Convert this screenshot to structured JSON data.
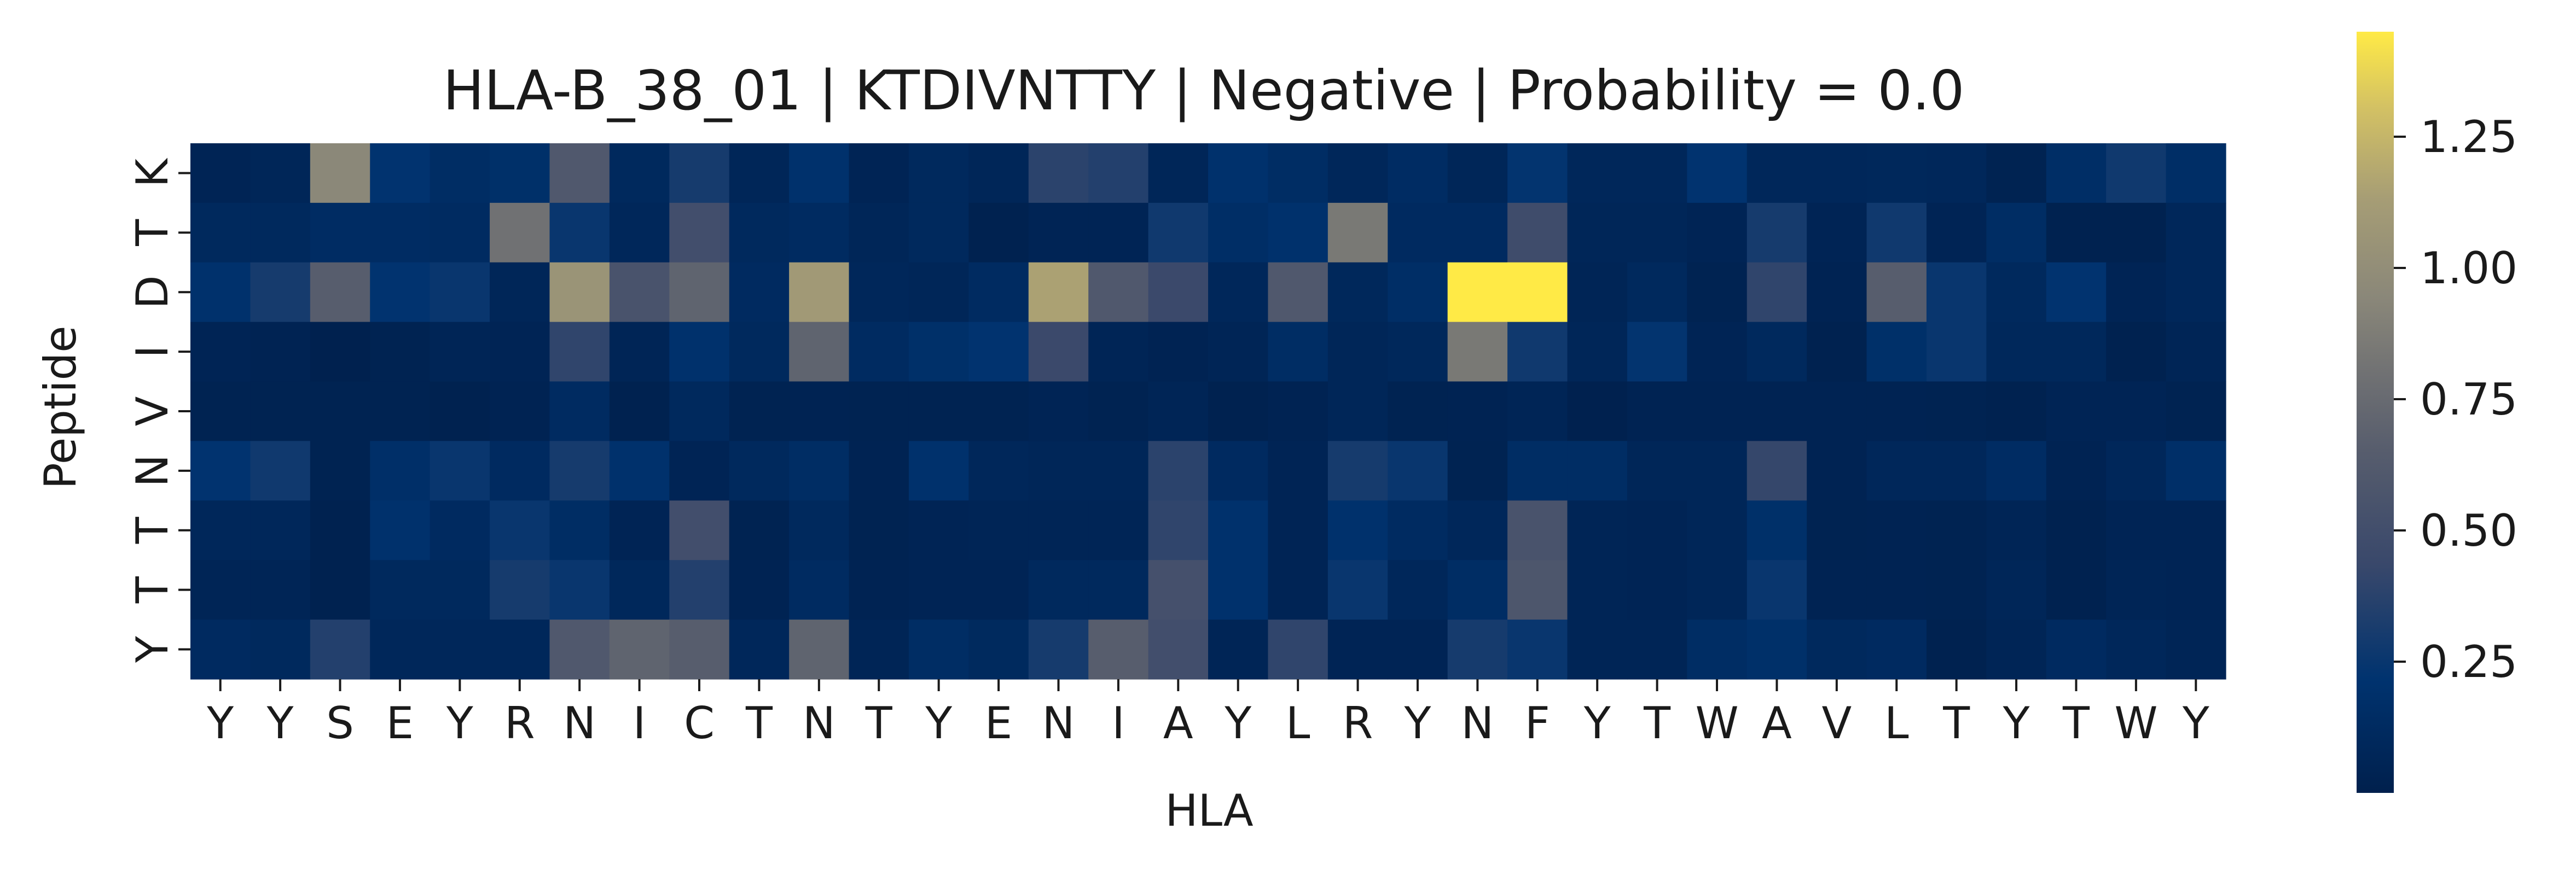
{
  "chart_data": {
    "type": "heatmap",
    "title": "HLA-B_38_01 | KTDIVNTTY | Negative | Probability = 0.0",
    "xlabel": "HLA",
    "ylabel": "Peptide",
    "x_categories": [
      "Y",
      "Y",
      "S",
      "E",
      "Y",
      "R",
      "N",
      "I",
      "C",
      "T",
      "N",
      "T",
      "Y",
      "E",
      "N",
      "I",
      "A",
      "Y",
      "L",
      "R",
      "Y",
      "N",
      "F",
      "Y",
      "T",
      "W",
      "A",
      "V",
      "L",
      "T",
      "Y",
      "T",
      "W",
      "Y"
    ],
    "y_categories": [
      "K",
      "T",
      "D",
      "I",
      "V",
      "N",
      "T",
      "T",
      "Y"
    ],
    "values": [
      [
        0.05,
        0.07,
        0.95,
        0.22,
        0.15,
        0.18,
        0.6,
        0.1,
        0.3,
        0.07,
        0.2,
        0.05,
        0.1,
        0.07,
        0.38,
        0.35,
        0.07,
        0.2,
        0.15,
        0.08,
        0.14,
        0.07,
        0.23,
        0.08,
        0.08,
        0.22,
        0.08,
        0.08,
        0.09,
        0.08,
        0.03,
        0.16,
        0.28,
        0.16
      ],
      [
        0.1,
        0.1,
        0.14,
        0.14,
        0.13,
        0.8,
        0.25,
        0.08,
        0.5,
        0.1,
        0.13,
        0.07,
        0.1,
        0.02,
        0.05,
        0.05,
        0.28,
        0.16,
        0.2,
        0.85,
        0.12,
        0.12,
        0.48,
        0.07,
        0.07,
        0.05,
        0.3,
        0.05,
        0.28,
        0.05,
        0.15,
        0.02,
        0.02,
        0.08
      ],
      [
        0.2,
        0.3,
        0.65,
        0.22,
        0.25,
        0.07,
        1.05,
        0.55,
        0.7,
        0.12,
        1.1,
        0.08,
        0.07,
        0.13,
        1.15,
        0.6,
        0.45,
        0.08,
        0.6,
        0.09,
        0.16,
        1.45,
        1.45,
        0.06,
        0.1,
        0.03,
        0.4,
        0.04,
        0.65,
        0.25,
        0.1,
        0.22,
        0.05,
        0.08
      ],
      [
        0.05,
        0.04,
        0.01,
        0.03,
        0.06,
        0.05,
        0.4,
        0.06,
        0.2,
        0.1,
        0.7,
        0.13,
        0.18,
        0.22,
        0.45,
        0.06,
        0.04,
        0.06,
        0.15,
        0.07,
        0.09,
        0.85,
        0.28,
        0.07,
        0.23,
        0.05,
        0.1,
        0.02,
        0.18,
        0.25,
        0.09,
        0.09,
        0.02,
        0.06
      ],
      [
        0.03,
        0.03,
        0.03,
        0.03,
        0.02,
        0.04,
        0.13,
        0.02,
        0.1,
        0.03,
        0.04,
        0.03,
        0.03,
        0.03,
        0.05,
        0.03,
        0.06,
        0.02,
        0.04,
        0.07,
        0.03,
        0.04,
        0.06,
        0.01,
        0.04,
        0.04,
        0.04,
        0.04,
        0.04,
        0.03,
        0.02,
        0.05,
        0.05,
        0.03
      ],
      [
        0.22,
        0.28,
        0.03,
        0.17,
        0.25,
        0.12,
        0.3,
        0.2,
        0.05,
        0.1,
        0.15,
        0.04,
        0.2,
        0.08,
        0.07,
        0.07,
        0.38,
        0.12,
        0.05,
        0.3,
        0.25,
        0.03,
        0.15,
        0.15,
        0.07,
        0.07,
        0.42,
        0.04,
        0.08,
        0.08,
        0.14,
        0.04,
        0.08,
        0.17
      ],
      [
        0.08,
        0.08,
        0.02,
        0.2,
        0.12,
        0.25,
        0.15,
        0.05,
        0.5,
        0.03,
        0.1,
        0.03,
        0.05,
        0.06,
        0.06,
        0.06,
        0.4,
        0.2,
        0.05,
        0.2,
        0.13,
        0.08,
        0.55,
        0.06,
        0.05,
        0.07,
        0.18,
        0.03,
        0.04,
        0.03,
        0.06,
        0.02,
        0.05,
        0.05
      ],
      [
        0.06,
        0.06,
        0.02,
        0.1,
        0.1,
        0.3,
        0.25,
        0.09,
        0.35,
        0.04,
        0.13,
        0.04,
        0.05,
        0.05,
        0.1,
        0.1,
        0.52,
        0.2,
        0.05,
        0.25,
        0.08,
        0.15,
        0.58,
        0.06,
        0.05,
        0.07,
        0.25,
        0.04,
        0.04,
        0.03,
        0.07,
        0.02,
        0.06,
        0.05
      ],
      [
        0.12,
        0.1,
        0.35,
        0.08,
        0.08,
        0.08,
        0.6,
        0.7,
        0.65,
        0.08,
        0.7,
        0.06,
        0.15,
        0.11,
        0.3,
        0.65,
        0.5,
        0.06,
        0.4,
        0.05,
        0.05,
        0.3,
        0.25,
        0.06,
        0.06,
        0.15,
        0.18,
        0.1,
        0.12,
        0.02,
        0.06,
        0.12,
        0.08,
        0.06
      ]
    ],
    "vmin": 0.0,
    "vmax": 1.45,
    "colormap": "cividis",
    "colorbar_ticks": [
      0.25,
      0.5,
      0.75,
      1.0,
      1.25
    ],
    "colorbar_tick_labels": [
      "0.25",
      "0.50",
      "0.75",
      "1.00",
      "1.25"
    ],
    "grid": false,
    "legend": "colorbar-right"
  }
}
